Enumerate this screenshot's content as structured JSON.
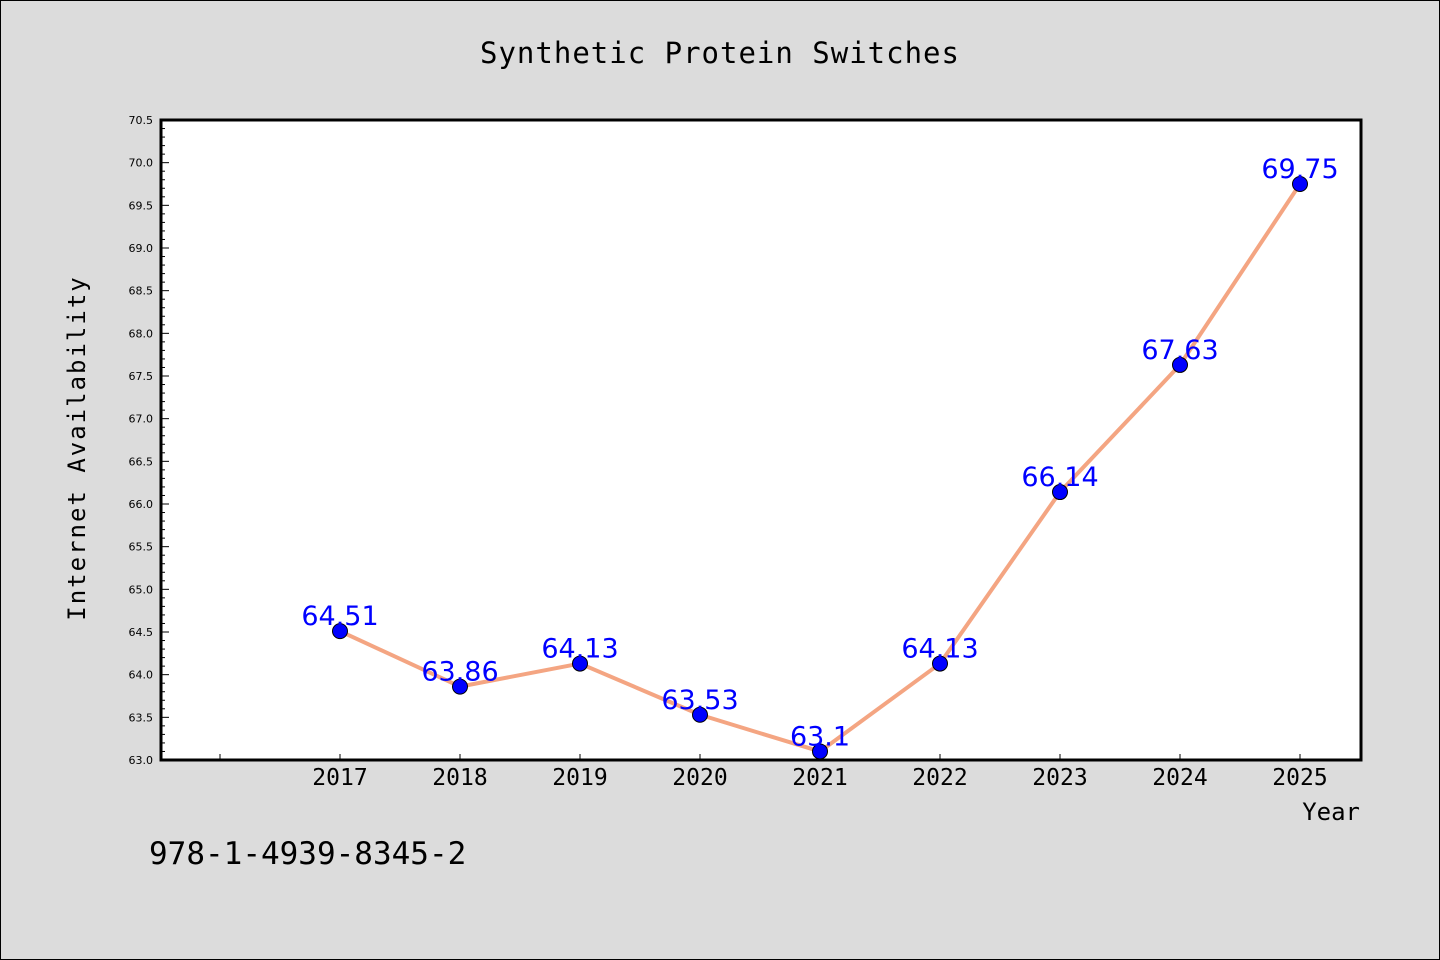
{
  "chart_data": {
    "type": "line",
    "title": "Synthetic Protein Switches",
    "xlabel": "Year",
    "ylabel": "Internet Availability",
    "categories": [
      "2017",
      "2018",
      "2019",
      "2020",
      "2021",
      "2022",
      "2023",
      "2024",
      "2025"
    ],
    "series": [
      {
        "values": [
          64.51,
          63.86,
          64.13,
          63.53,
          63.1,
          64.13,
          66.14,
          67.63,
          69.75
        ],
        "labels": [
          "64.51",
          "63.86",
          "64.13",
          "63.53",
          "63.1",
          "64.13",
          "66.14",
          "67.63",
          "69.75"
        ],
        "line_color": "#f4a582",
        "marker_color": "#0000ff",
        "label_color": "#0000ff"
      }
    ],
    "ylim": [
      63.0,
      70.5
    ],
    "yticks": [
      "63.0",
      "63.5",
      "64.0",
      "64.5",
      "65.0",
      "65.5",
      "66.0",
      "66.5",
      "67.0",
      "67.5",
      "68.0",
      "68.5",
      "69.0",
      "69.5",
      "70.0",
      "70.5"
    ],
    "grid": false,
    "legend": "none"
  },
  "footer": {
    "isbn": "978-1-4939-8345-2"
  }
}
